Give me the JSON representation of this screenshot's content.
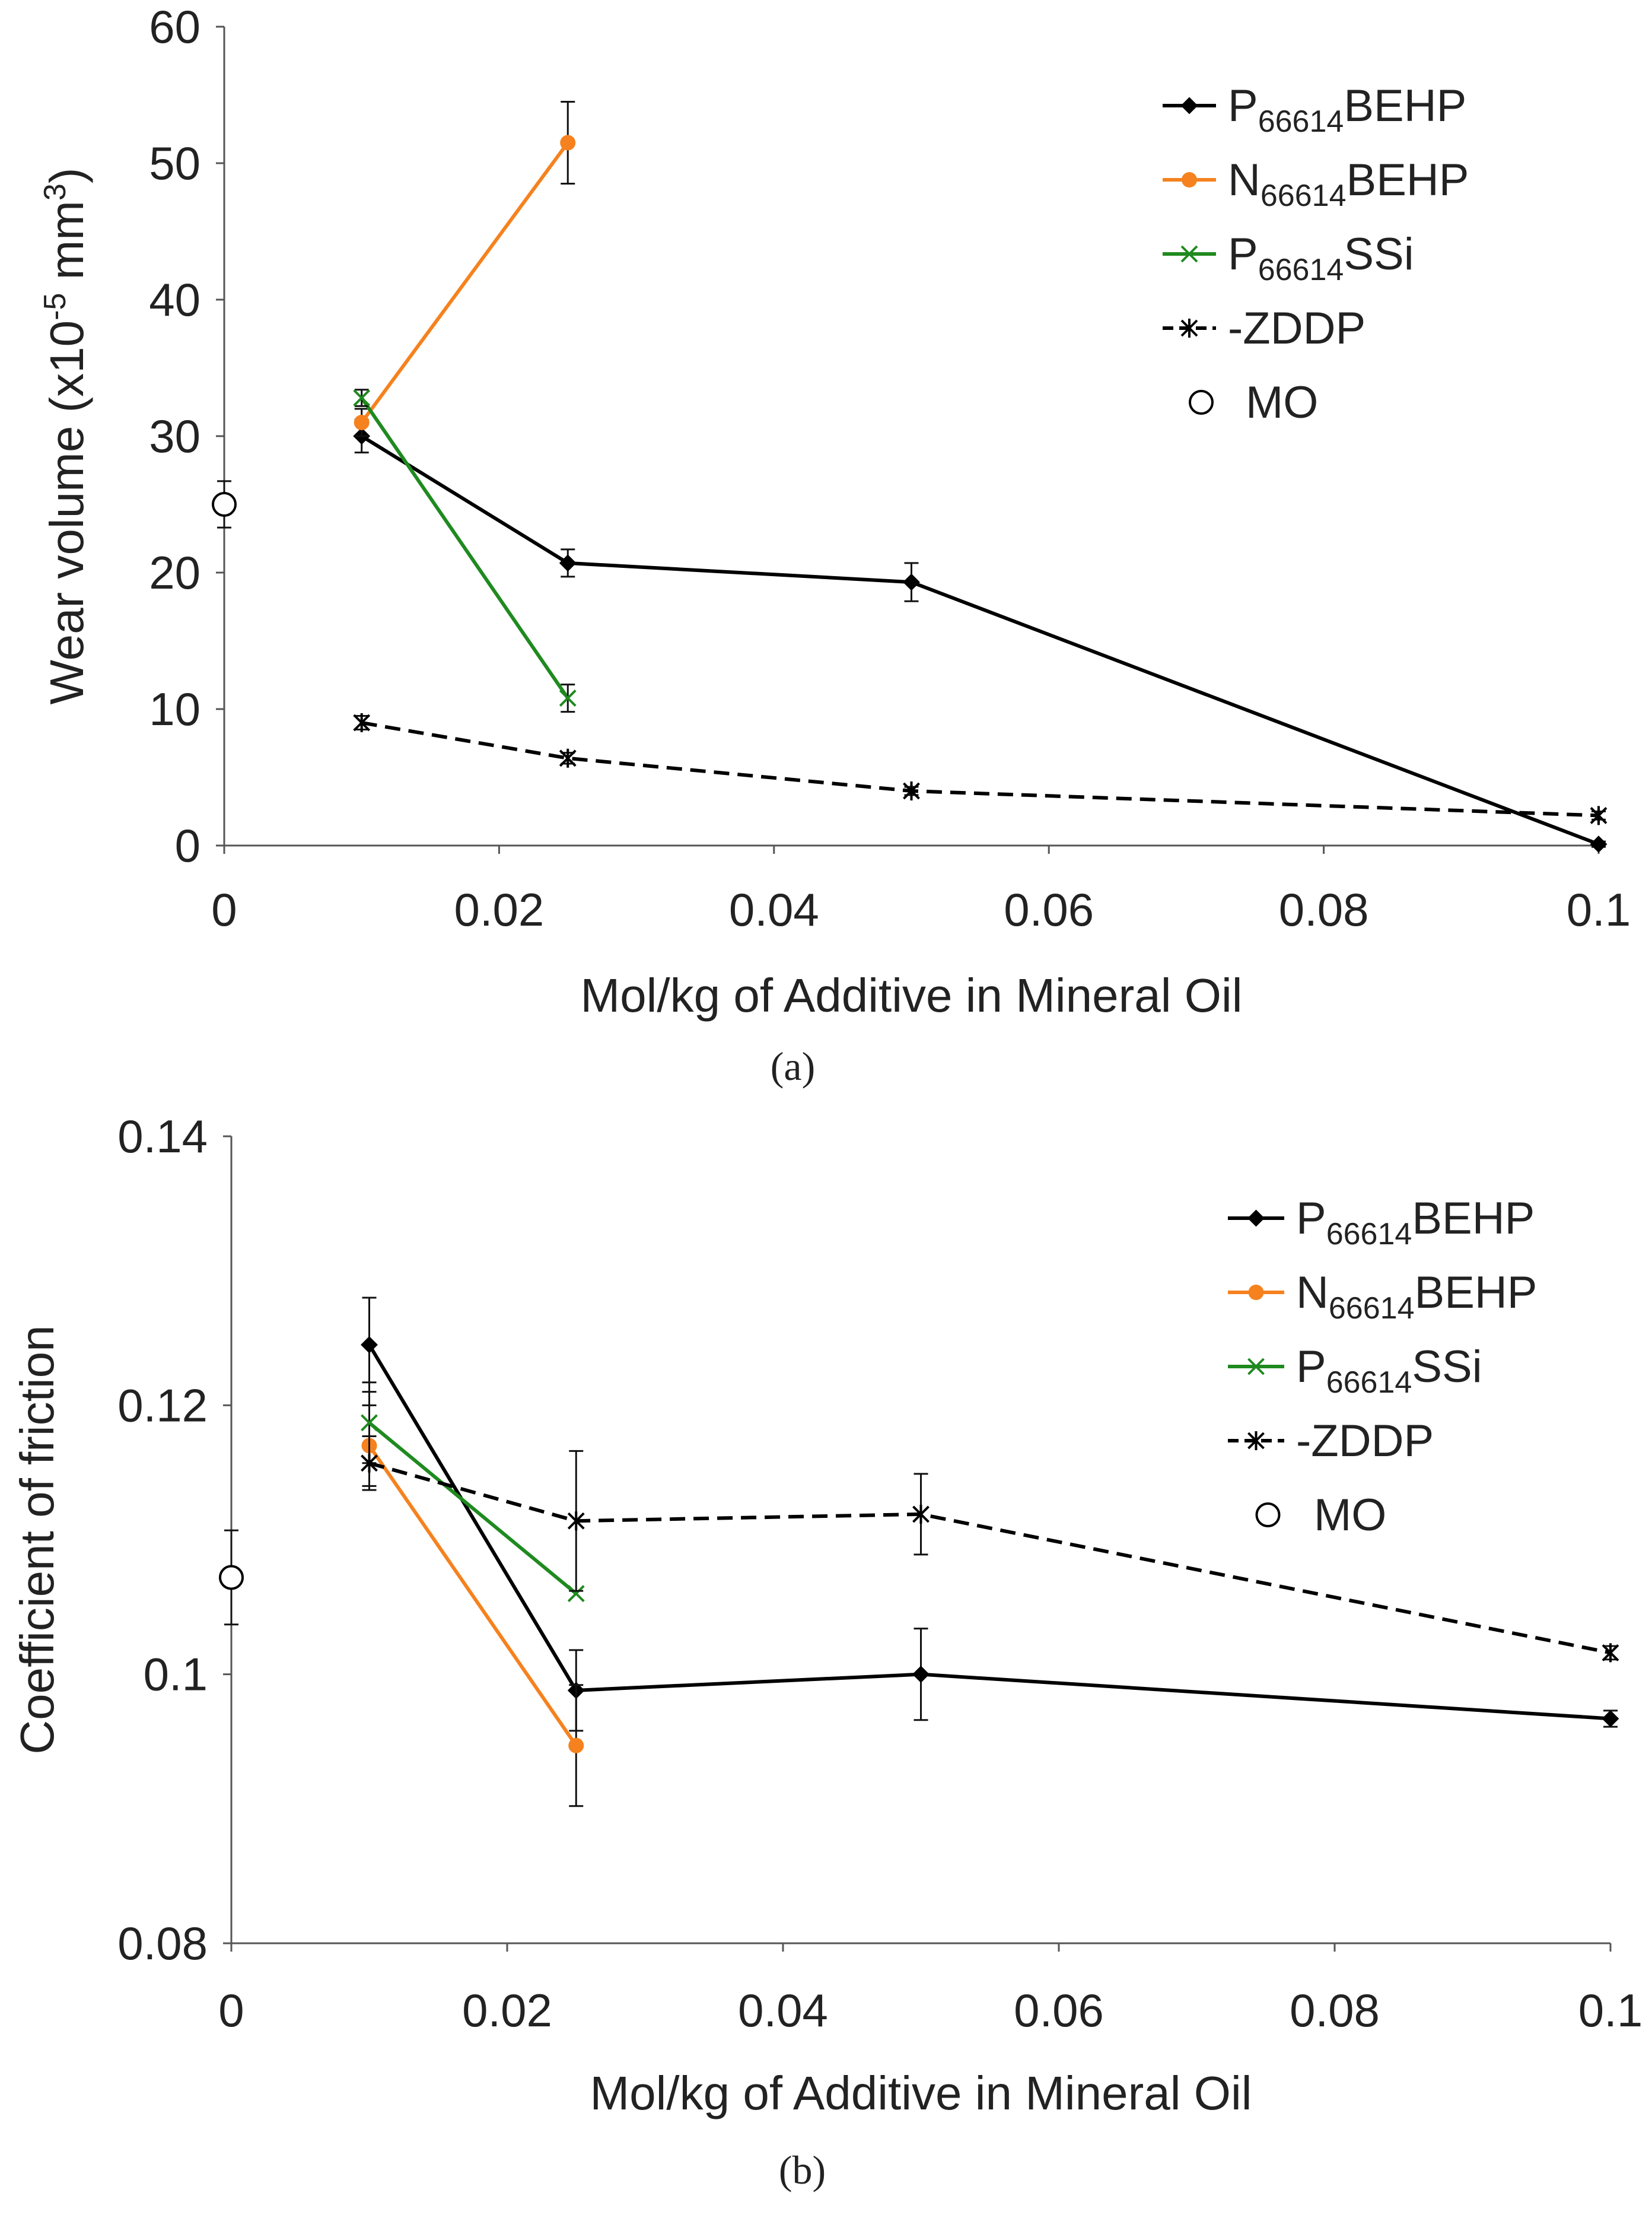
{
  "chart_data": [
    {
      "type": "line",
      "panel": "a",
      "xlabel": "Mol/kg of Additive in Mineral Oil",
      "ylabel": "Wear volume (x10-5 mm3)",
      "ylabel_parts": {
        "pre": "Wear volume (x10",
        "sup1": "-5",
        "mid": " mm",
        "sup2": "3",
        "post": ")"
      },
      "xlim": [
        0,
        0.1
      ],
      "ylim": [
        0,
        60
      ],
      "xticks": [
        0,
        0.02,
        0.04,
        0.06,
        0.08,
        0.1
      ],
      "xtick_labels": [
        "0",
        "0.02",
        "0.04",
        "0.06",
        "0.08",
        "0.1"
      ],
      "yticks": [
        0,
        10,
        20,
        30,
        40,
        50,
        60
      ],
      "ytick_labels": [
        "0",
        "10",
        "20",
        "30",
        "40",
        "50",
        "60"
      ],
      "legend_position": "top-right",
      "series": [
        {
          "name": "P66614BEHP",
          "label_main": "P",
          "label_sub": "66614",
          "label_post": "BEHP",
          "color": "#000000",
          "dash": false,
          "marker": "diamond",
          "x": [
            0.01,
            0.025,
            0.05,
            0.1
          ],
          "y": [
            30,
            20.7,
            19.3,
            0.1
          ],
          "err": [
            1.2,
            1.0,
            1.4,
            0.2
          ]
        },
        {
          "name": "N66614BEHP",
          "label_main": "N",
          "label_sub": "66614",
          "label_post": "BEHP",
          "color": "#f5821f",
          "dash": false,
          "marker": "circle",
          "x": [
            0.01,
            0.025
          ],
          "y": [
            31,
            51.5
          ],
          "err": [
            1.0,
            3.0
          ]
        },
        {
          "name": "P66614SSi",
          "label_main": "P",
          "label_sub": "66614",
          "label_post": "SSi",
          "color": "#1f8a1f",
          "dash": false,
          "marker": "x",
          "x": [
            0.01,
            0.025
          ],
          "y": [
            32.8,
            10.8
          ],
          "err": [
            0.6,
            1.0
          ]
        },
        {
          "name": "ZDDP",
          "label_main": "-ZDDP",
          "label_sub": "",
          "label_post": "",
          "color": "#000000",
          "dash": true,
          "marker": "star",
          "x": [
            0.01,
            0.025,
            0.05,
            0.1
          ],
          "y": [
            9.0,
            6.4,
            4.0,
            2.2
          ],
          "err": [
            0.5,
            0.4,
            0.3,
            0.3
          ]
        },
        {
          "name": "MO",
          "label_main": "MO",
          "label_sub": "",
          "label_post": "",
          "color": "#000000",
          "dash": false,
          "marker": "open-circle",
          "x": [
            0
          ],
          "y": [
            25
          ],
          "err": [
            1.7
          ]
        }
      ],
      "panel_label": "(a)"
    },
    {
      "type": "line",
      "panel": "b",
      "xlabel": "Mol/kg of Additive in Mineral Oil",
      "ylabel": "Coefficient of friction",
      "xlim": [
        0,
        0.1
      ],
      "ylim": [
        0.08,
        0.14
      ],
      "xticks": [
        0,
        0.02,
        0.04,
        0.06,
        0.08,
        0.1
      ],
      "xtick_labels": [
        "0",
        "0.02",
        "0.04",
        "0.06",
        "0.08",
        "0.1"
      ],
      "yticks": [
        0.08,
        0.1,
        0.12,
        0.14
      ],
      "ytick_labels": [
        "0.08",
        "0.1",
        "0.12",
        "0.14"
      ],
      "legend_position": "top-right",
      "series": [
        {
          "name": "P66614BEHP",
          "label_main": "P",
          "label_sub": "66614",
          "label_post": "BEHP",
          "color": "#000000",
          "dash": false,
          "marker": "diamond",
          "x": [
            0.01,
            0.025,
            0.05,
            0.1
          ],
          "y": [
            0.1245,
            0.0988,
            0.1,
            0.0967
          ],
          "err": [
            0.0035,
            0.003,
            0.0034,
            0.0006
          ]
        },
        {
          "name": "N66614BEHP",
          "label_main": "N",
          "label_sub": "66614",
          "label_post": "BEHP",
          "color": "#f5821f",
          "dash": false,
          "marker": "circle",
          "x": [
            0.01,
            0.025
          ],
          "y": [
            0.117,
            0.0947
          ],
          "err": [
            0.003,
            0.0045
          ]
        },
        {
          "name": "P66614SSi",
          "label_main": "P",
          "label_sub": "66614",
          "label_post": "SSi",
          "color": "#1f8a1f",
          "dash": false,
          "marker": "x",
          "x": [
            0.01,
            0.025
          ],
          "y": [
            0.1187,
            0.106
          ],
          "err": [
            0.003,
            0.0
          ]
        },
        {
          "name": "ZDDP",
          "label_main": "-ZDDP",
          "label_sub": "",
          "label_post": "",
          "color": "#000000",
          "dash": true,
          "marker": "star",
          "x": [
            0.01,
            0.025,
            0.05,
            0.1
          ],
          "y": [
            0.1157,
            0.1114,
            0.1119,
            0.1016
          ],
          "err": [
            0.002,
            0.0052,
            0.003,
            0.0005
          ]
        },
        {
          "name": "MO",
          "label_main": "MO",
          "label_sub": "",
          "label_post": "",
          "color": "#000000",
          "dash": false,
          "marker": "open-circle",
          "x": [
            0
          ],
          "y": [
            0.1072
          ],
          "err": [
            0.0035
          ]
        }
      ],
      "panel_label": "(b)"
    }
  ]
}
